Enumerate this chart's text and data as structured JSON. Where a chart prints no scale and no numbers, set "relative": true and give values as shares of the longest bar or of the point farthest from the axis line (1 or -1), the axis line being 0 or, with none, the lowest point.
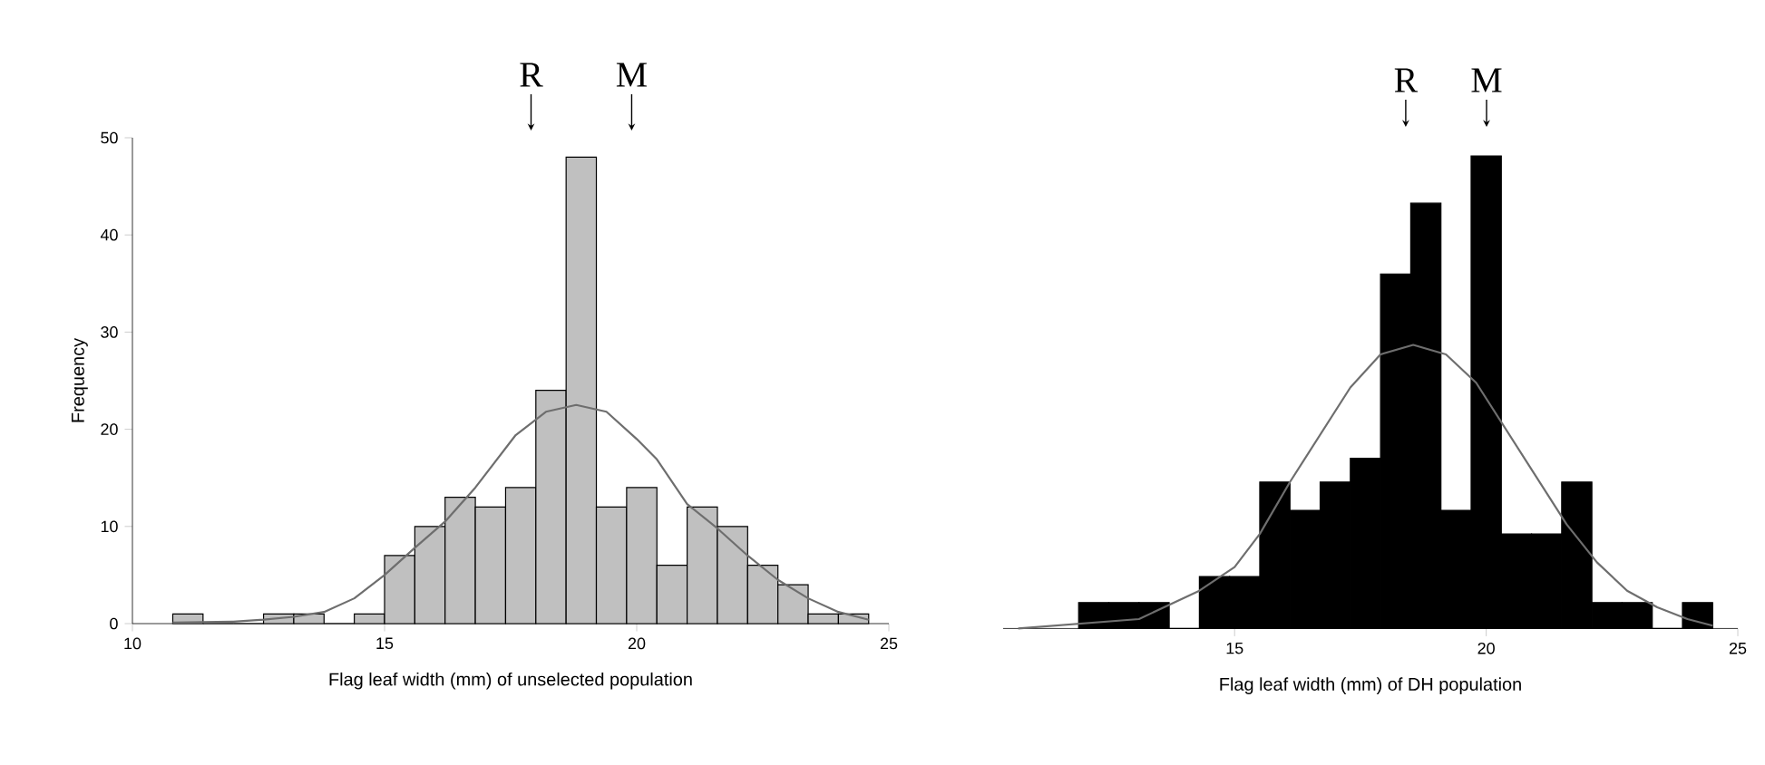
{
  "chart_data": [
    {
      "type": "histogram",
      "xlabel": "Flag leaf width (mm) of unselected population",
      "ylabel": "Frequency",
      "bins": [
        10.8,
        11.4,
        12.0,
        12.6,
        13.2,
        13.8,
        14.4,
        15.0,
        15.6,
        16.2,
        16.8,
        17.4,
        18.0,
        18.6,
        19.2,
        19.8,
        20.4,
        21.0,
        21.6,
        22.2,
        22.8,
        23.4,
        24.0,
        24.6
      ],
      "series": [
        {
          "color": "#c0c0c0",
          "values": [
            1,
            0,
            0,
            1,
            1,
            0,
            1,
            7,
            10,
            13,
            12,
            14,
            24,
            48,
            12,
            14,
            6,
            12,
            10,
            6,
            4,
            1,
            1
          ]
        },
        {
          "type": "line",
          "color": "#6e6e6e",
          "x": [
            10.8,
            12.0,
            12.6,
            13.2,
            13.8,
            14.4,
            15.0,
            15.6,
            16.2,
            16.8,
            17.6,
            18.2,
            18.8,
            19.4,
            20.0,
            20.4,
            21.0,
            21.6,
            22.2,
            22.8,
            23.4,
            24.0,
            24.6
          ],
          "values": [
            0.1,
            0.2,
            0.4,
            0.7,
            1.2,
            2.6,
            5,
            7.8,
            10.5,
            14,
            19.4,
            21.8,
            22.5,
            21.8,
            19,
            16.9,
            12.3,
            9.8,
            7,
            4.5,
            2.6,
            1.2,
            0.4
          ]
        }
      ],
      "xlim": [
        10,
        25
      ],
      "xticks": [
        10,
        15,
        20,
        25
      ],
      "ylim": [
        0,
        50
      ],
      "yticks": [
        0,
        10,
        20,
        30,
        40,
        50
      ],
      "annotations": [
        "R",
        "M"
      ]
    },
    {
      "type": "histogram",
      "xlabel": "Flag leaf width (mm) of DH population",
      "relative": true,
      "bins": [
        11.9,
        12.5,
        13.1,
        13.7,
        14.3,
        14.9,
        15.5,
        16.1,
        16.7,
        17.3,
        17.9,
        18.5,
        19.1,
        19.7,
        20.3,
        20.9,
        21.5,
        22.1,
        22.7,
        23.3,
        23.9,
        24.5
      ],
      "series": [
        {
          "color": "#000000",
          "values": [
            0.055,
            0.055,
            0.055,
            0,
            0.11,
            0.11,
            0.31,
            0.25,
            0.31,
            0.36,
            0.75,
            0.9,
            0.25,
            1,
            0.2,
            0.2,
            0.31,
            0.055,
            0.055,
            0,
            0.055
          ]
        },
        {
          "type": "line",
          "color": "#6e6e6e",
          "x": [
            10.7,
            13.1,
            14.3,
            15.0,
            15.5,
            16.1,
            16.7,
            17.3,
            17.9,
            18.55,
            19.2,
            19.8,
            20.4,
            21.0,
            21.6,
            22.2,
            22.8,
            23.4,
            24.0,
            24.5
          ],
          "values": [
            0,
            0.02,
            0.08,
            0.13,
            0.2,
            0.31,
            0.41,
            0.51,
            0.58,
            0.6,
            0.58,
            0.52,
            0.42,
            0.32,
            0.22,
            0.14,
            0.08,
            0.045,
            0.02,
            0.006
          ]
        }
      ],
      "xlim": [
        10.4,
        25
      ],
      "xticks": [
        15,
        20,
        25
      ],
      "annotations": [
        "R",
        "M"
      ]
    }
  ]
}
